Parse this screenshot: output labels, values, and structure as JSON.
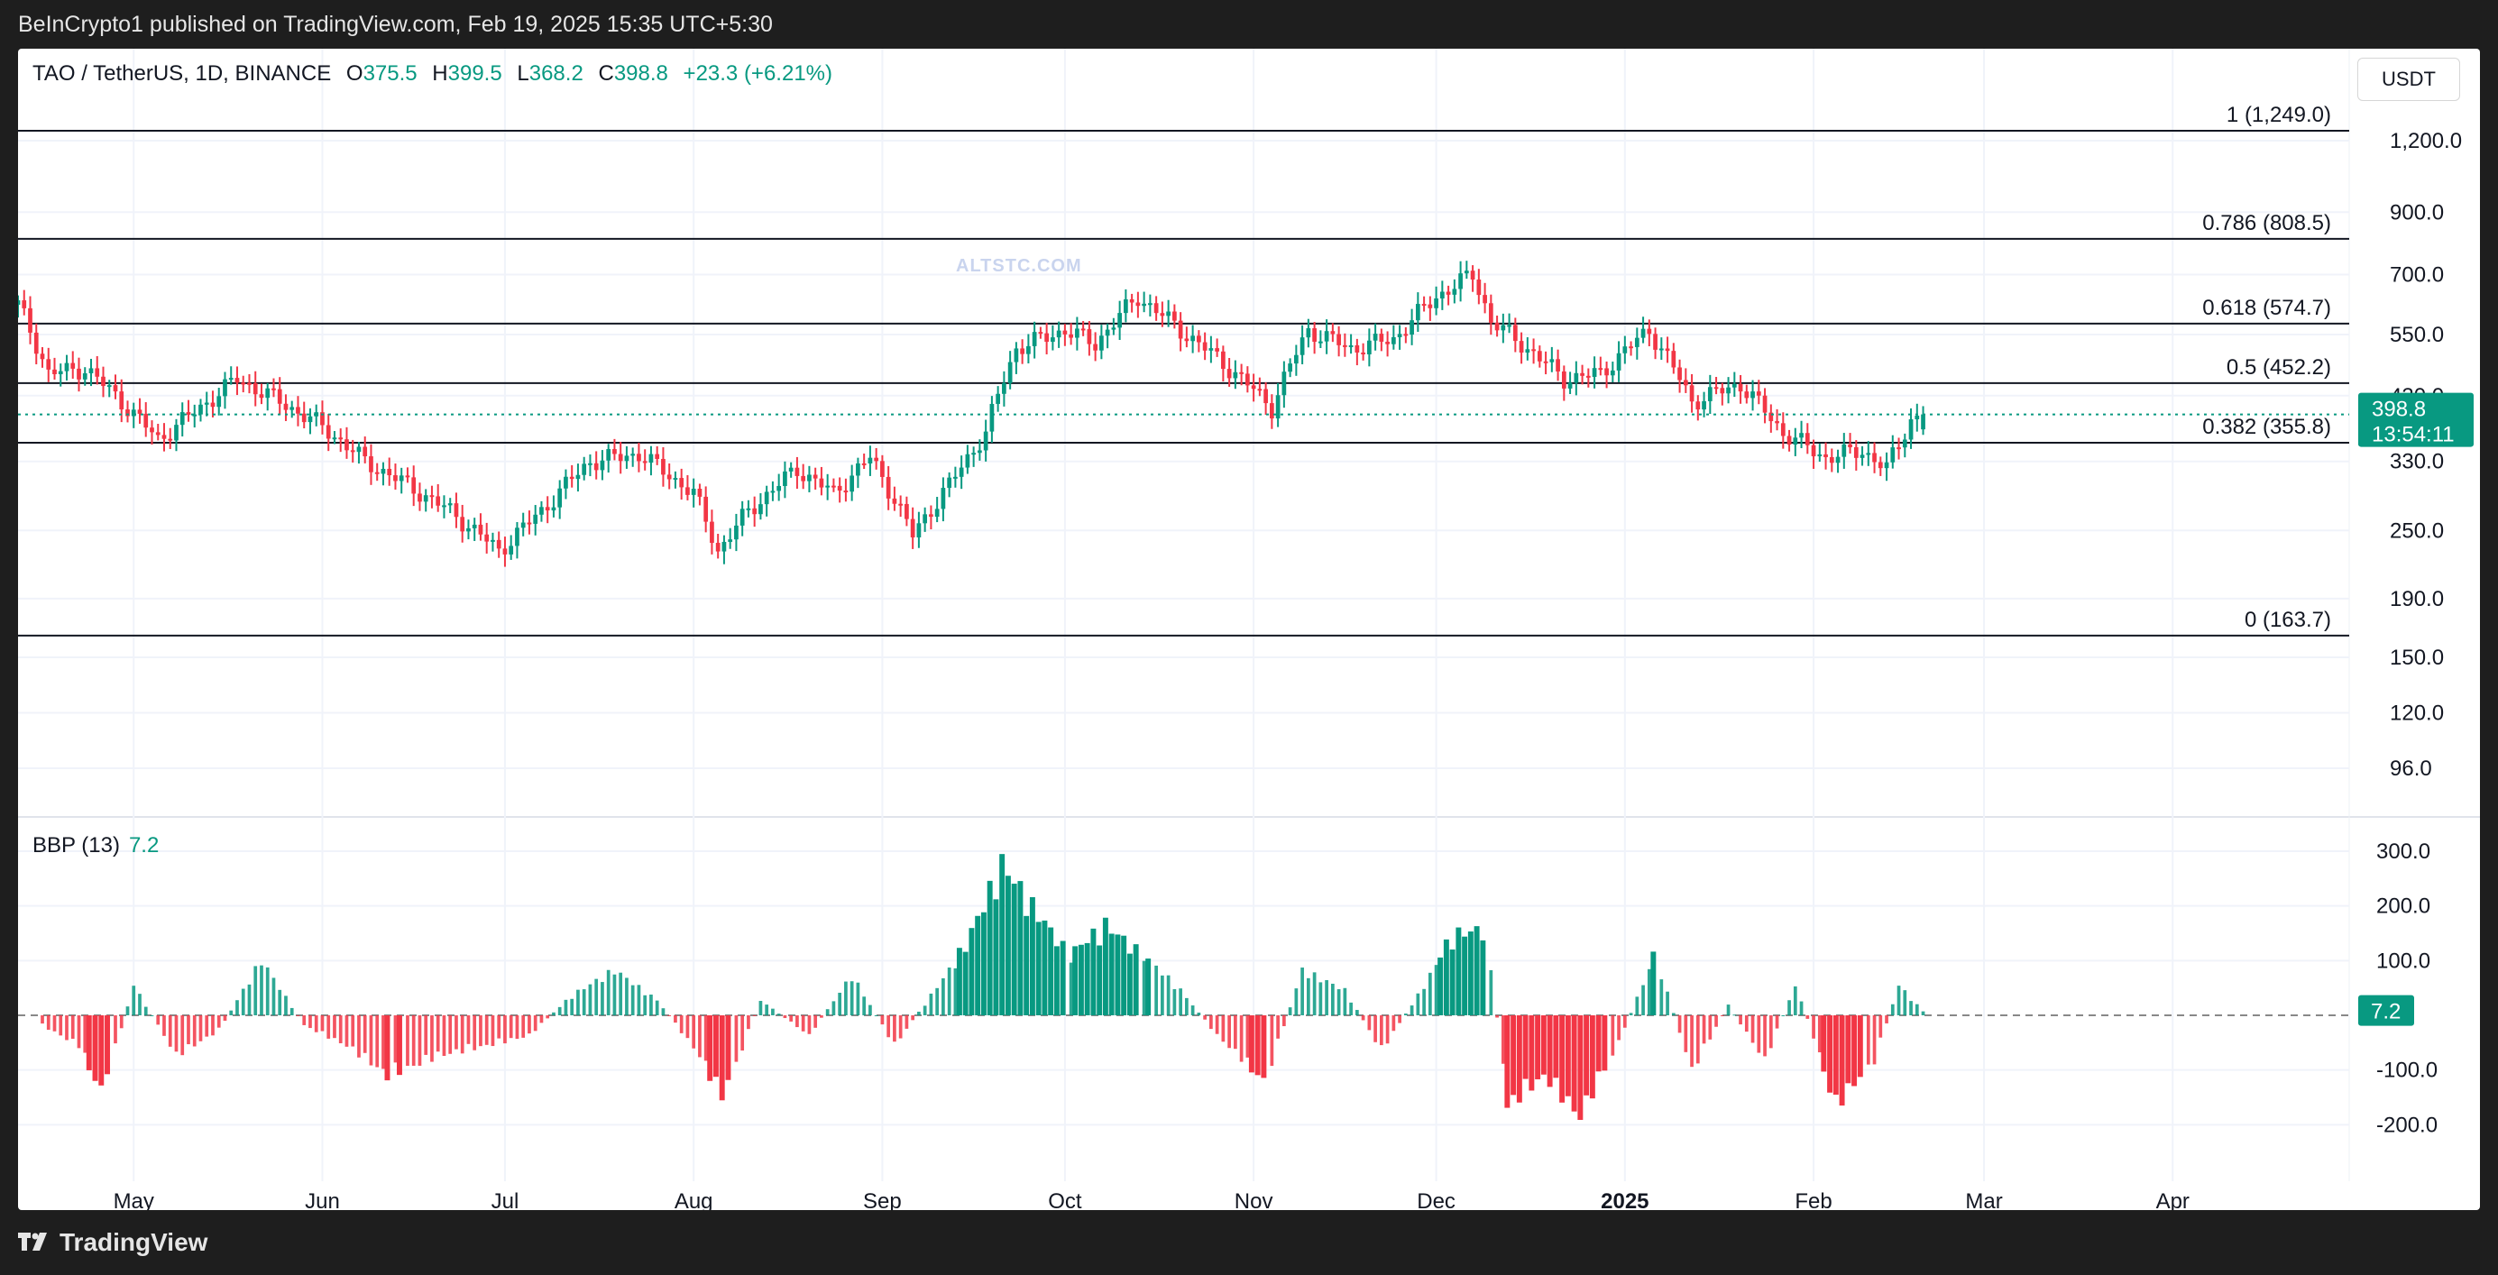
{
  "header": {
    "publisher_text": "BeInCrypto1 published on TradingView.com, Feb 19, 2025 15:35 UTC+5:30"
  },
  "footer": {
    "brand": "TradingView"
  },
  "symbol": {
    "name": "TAO / TetherUS, 1D, BINANCE",
    "o_label": "O",
    "o": "375.5",
    "h_label": "H",
    "h": "399.5",
    "l_label": "L",
    "l": "368.2",
    "c_label": "C",
    "c": "398.8",
    "change": "+23.3 (+6.21%)"
  },
  "quote_currency": "USDT",
  "watermark": "ALTSTC.COM",
  "price_badge": {
    "price": "398.8",
    "countdown": "13:54:11"
  },
  "indicator": {
    "name": "BBP (13)",
    "value": "7.2",
    "badge": "7.2"
  },
  "colors": {
    "up": "#089981",
    "down": "#f23645",
    "grid": "#f0f3fa",
    "fib_line": "#131722"
  },
  "chart_data": [
    {
      "type": "candlestick",
      "title": "TAO / TetherUS, 1D, BINANCE",
      "scale": "log",
      "x_range": [
        "2024-04-12",
        "2025-04-30"
      ],
      "x_ticks": [
        "May",
        "Jun",
        "Jul",
        "Aug",
        "Sep",
        "Oct",
        "Nov",
        "Dec",
        "2025",
        "Feb",
        "Mar",
        "Apr"
      ],
      "y_ticks": [
        "1,200.0",
        "900.0",
        "700.0",
        "550.0",
        "430.0",
        "330.0",
        "250.0",
        "190.0",
        "150.0",
        "120.0",
        "96.0"
      ],
      "last_price": 398.8,
      "fibonacci": [
        {
          "label": "1 (1,249.0)",
          "value": 1249.0
        },
        {
          "label": "0.786 (808.5)",
          "value": 808.5
        },
        {
          "label": "0.618 (574.7)",
          "value": 574.7
        },
        {
          "label": "0.5 (452.2)",
          "value": 452.2
        },
        {
          "label": "0.382 (355.8)",
          "value": 355.8
        },
        {
          "label": "0 (163.7)",
          "value": 163.7
        }
      ],
      "price_path": [
        [
          "2024-04-12",
          620
        ],
        [
          "2024-04-17",
          470
        ],
        [
          "2024-04-23",
          480
        ],
        [
          "2024-04-28",
          430
        ],
        [
          "2024-05-05",
          360
        ],
        [
          "2024-05-12",
          410
        ],
        [
          "2024-05-18",
          460
        ],
        [
          "2024-05-25",
          420
        ],
        [
          "2024-06-01",
          380
        ],
        [
          "2024-06-08",
          330
        ],
        [
          "2024-06-15",
          300
        ],
        [
          "2024-06-22",
          270
        ],
        [
          "2024-06-30",
          230
        ],
        [
          "2024-07-07",
          270
        ],
        [
          "2024-07-15",
          330
        ],
        [
          "2024-07-23",
          340
        ],
        [
          "2024-08-01",
          290
        ],
        [
          "2024-08-05",
          230
        ],
        [
          "2024-08-10",
          270
        ],
        [
          "2024-08-18",
          320
        ],
        [
          "2024-08-24",
          290
        ],
        [
          "2024-08-30",
          335
        ],
        [
          "2024-09-06",
          245
        ],
        [
          "2024-09-12",
          300
        ],
        [
          "2024-09-18",
          370
        ],
        [
          "2024-09-23",
          520
        ],
        [
          "2024-10-01",
          560
        ],
        [
          "2024-10-06",
          530
        ],
        [
          "2024-10-13",
          640
        ],
        [
          "2024-10-20",
          560
        ],
        [
          "2024-10-27",
          490
        ],
        [
          "2024-11-04",
          410
        ],
        [
          "2024-11-10",
          560
        ],
        [
          "2024-11-17",
          520
        ],
        [
          "2024-11-24",
          540
        ],
        [
          "2024-12-01",
          640
        ],
        [
          "2024-12-07",
          700
        ],
        [
          "2024-12-10",
          580
        ],
        [
          "2024-12-16",
          520
        ],
        [
          "2024-12-22",
          460
        ],
        [
          "2024-12-28",
          470
        ],
        [
          "2025-01-05",
          560
        ],
        [
          "2025-01-12",
          420
        ],
        [
          "2025-01-20",
          450
        ],
        [
          "2025-01-27",
          370
        ],
        [
          "2025-02-03",
          335
        ],
        [
          "2025-02-09",
          345
        ],
        [
          "2025-02-13",
          320
        ],
        [
          "2025-02-17",
          390
        ],
        [
          "2025-02-19",
          398.8
        ]
      ]
    },
    {
      "type": "bar",
      "title": "BBP (13)",
      "y_ticks": [
        "300.0",
        "200.0",
        "100.0",
        "-100.0",
        "-200.0"
      ],
      "last_value": 7.2,
      "bbp_path": [
        [
          "2024-04-16",
          -20
        ],
        [
          "2024-04-22",
          -60
        ],
        [
          "2024-04-26",
          -150
        ],
        [
          "2024-05-01",
          60
        ],
        [
          "2024-05-08",
          -80
        ],
        [
          "2024-05-15",
          -30
        ],
        [
          "2024-05-22",
          110
        ],
        [
          "2024-05-29",
          -20
        ],
        [
          "2024-06-05",
          -60
        ],
        [
          "2024-06-12",
          -120
        ],
        [
          "2024-06-20",
          -80
        ],
        [
          "2024-06-28",
          -60
        ],
        [
          "2024-07-05",
          -40
        ],
        [
          "2024-07-12",
          40
        ],
        [
          "2024-07-19",
          90
        ],
        [
          "2024-07-26",
          30
        ],
        [
          "2024-08-02",
          -80
        ],
        [
          "2024-08-06",
          -160
        ],
        [
          "2024-08-12",
          30
        ],
        [
          "2024-08-20",
          -40
        ],
        [
          "2024-08-27",
          80
        ],
        [
          "2024-09-03",
          -60
        ],
        [
          "2024-09-09",
          40
        ],
        [
          "2024-09-15",
          140
        ],
        [
          "2024-09-21",
          300
        ],
        [
          "2024-09-27",
          200
        ],
        [
          "2024-10-02",
          120
        ],
        [
          "2024-10-08",
          180
        ],
        [
          "2024-10-14",
          120
        ],
        [
          "2024-10-20",
          50
        ],
        [
          "2024-10-26",
          -40
        ],
        [
          "2024-11-03",
          -130
        ],
        [
          "2024-11-09",
          90
        ],
        [
          "2024-11-16",
          50
        ],
        [
          "2024-11-22",
          -70
        ],
        [
          "2024-11-28",
          40
        ],
        [
          "2024-12-04",
          160
        ],
        [
          "2024-12-09",
          170
        ],
        [
          "2024-12-13",
          -180
        ],
        [
          "2024-12-19",
          -120
        ],
        [
          "2024-12-25",
          -200
        ],
        [
          "2024-12-30",
          -80
        ],
        [
          "2025-01-06",
          120
        ],
        [
          "2025-01-12",
          -110
        ],
        [
          "2025-01-18",
          20
        ],
        [
          "2025-01-24",
          -90
        ],
        [
          "2025-01-29",
          60
        ],
        [
          "2025-02-05",
          -180
        ],
        [
          "2025-02-11",
          -90
        ],
        [
          "2025-02-15",
          60
        ],
        [
          "2025-02-19",
          7.2
        ]
      ]
    }
  ]
}
